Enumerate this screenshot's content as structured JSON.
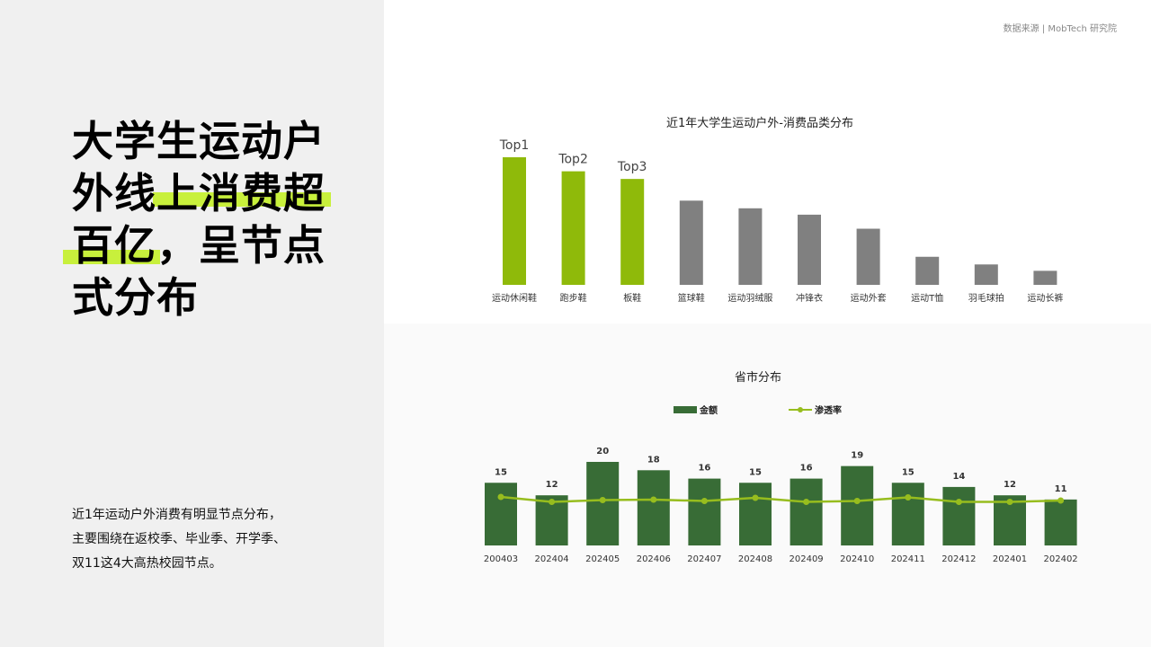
{
  "source": "数据来源 | MobTech 研究院",
  "headline": {
    "lines": [
      {
        "parts": [
          {
            "text": "大学生运动户",
            "highlight": false
          }
        ]
      },
      {
        "parts": [
          {
            "text": "外线",
            "highlight": false
          },
          {
            "text": "上消费超",
            "highlight": true
          }
        ]
      },
      {
        "parts": [
          {
            "text": "百亿",
            "highlight": true
          },
          {
            "text": "，呈节点",
            "highlight": false
          }
        ]
      },
      {
        "parts": [
          {
            "text": "式分布",
            "highlight": false
          }
        ]
      }
    ]
  },
  "summary": {
    "lines": [
      "近1年运动户外消费有明显节点分布，",
      "主要围绕在返校季、毕业季、开学季、",
      "双11这4大高热校园节点。"
    ]
  },
  "colors": {
    "accent_green": "#8fba0a",
    "gray_bar": "#808080",
    "dark_green": "#386c36",
    "line_green": "#97bd1e",
    "highlight": "#c8f03c"
  },
  "chart_data": [
    {
      "type": "bar",
      "title": "近1年大学生运动户外-消费品类分布",
      "categories": [
        "运动休闲鞋",
        "跑步鞋",
        "板鞋",
        "篮球鞋",
        "运动羽绒服",
        "冲锋衣",
        "运动外套",
        "运动T恤",
        "羽毛球拍",
        "运动长裤"
      ],
      "values": [
        100,
        89,
        83,
        66,
        60,
        55,
        44,
        22,
        16,
        11
      ],
      "value_scale": "relative (no axis printed)",
      "top_labels": [
        "Top1",
        "Top2",
        "Top3"
      ],
      "highlight_count": 3,
      "ylim": [
        0,
        100
      ]
    },
    {
      "type": "bar+line",
      "title": "省市分布",
      "categories": [
        "200403",
        "202404",
        "202405",
        "202406",
        "202407",
        "202408",
        "202409",
        "202410",
        "202411",
        "202412",
        "202401",
        "202402"
      ],
      "series": [
        {
          "name": "金额",
          "type": "bar",
          "values": [
            15,
            12,
            20,
            18,
            16,
            15,
            16,
            19,
            15,
            14,
            12,
            11
          ]
        },
        {
          "name": "渗透率",
          "type": "line",
          "values": [
            0.82,
            0.71,
            0.75,
            0.76,
            0.73,
            0.8,
            0.71,
            0.73,
            0.81,
            0.71,
            0.71,
            0.74
          ]
        }
      ],
      "legend_position": "top-center",
      "ylim": [
        0,
        20
      ]
    }
  ]
}
